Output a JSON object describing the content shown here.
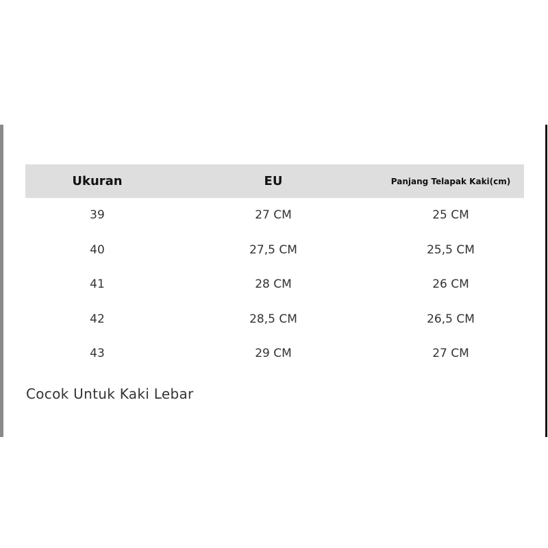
{
  "table": {
    "headers": [
      "Ukuran",
      "EU",
      "Panjang Telapak Kaki(cm)"
    ],
    "rows": [
      [
        "39",
        "27 CM",
        "25 CM"
      ],
      [
        "40",
        "27,5 CM",
        "25,5 CM"
      ],
      [
        "41",
        "28 CM",
        "26 CM"
      ],
      [
        "42",
        "28,5 CM",
        "26,5 CM"
      ],
      [
        "43",
        "29 CM",
        "27 CM"
      ]
    ]
  },
  "note": "Cocok Untuk Kaki Lebar"
}
